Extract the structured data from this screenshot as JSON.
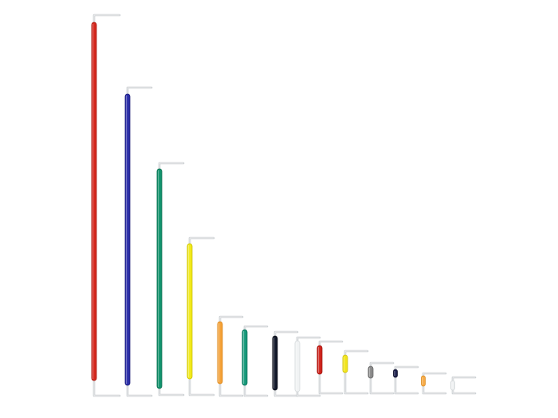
{
  "scene": {
    "background": "#ffffff",
    "lead_color": "#c9cdd0",
    "lead_highlight": "#eef0f1",
    "wires": [
      {
        "color": "#d5281e",
        "shade": "#a51a12"
      },
      {
        "color": "#2b2ea8",
        "shade": "#1b1c78"
      },
      {
        "color": "#11936c",
        "shade": "#0a6b4e"
      },
      {
        "color": "#f2ea1a",
        "shade": "#c8bf06"
      },
      {
        "color": "#f5a33a",
        "shade": "#d98417"
      },
      {
        "color": "#16997a",
        "shade": "#0c705a"
      },
      {
        "color": "#141a2c",
        "shade": "#05070f"
      },
      {
        "color": "#f1f3f4",
        "shade": "#d6dadc"
      },
      {
        "color": "#d0231c",
        "shade": "#9e1510"
      },
      {
        "color": "#f2e51c",
        "shade": "#c9bc08"
      },
      {
        "color": "#8a8a8a",
        "shade": "#666666"
      },
      {
        "color": "#1b1f4a",
        "shade": "#0a0c26"
      },
      {
        "color": "#f6a944",
        "shade": "#d88b23"
      },
      {
        "color": "#eef0f1",
        "shade": "#d3d7d9"
      }
    ]
  }
}
